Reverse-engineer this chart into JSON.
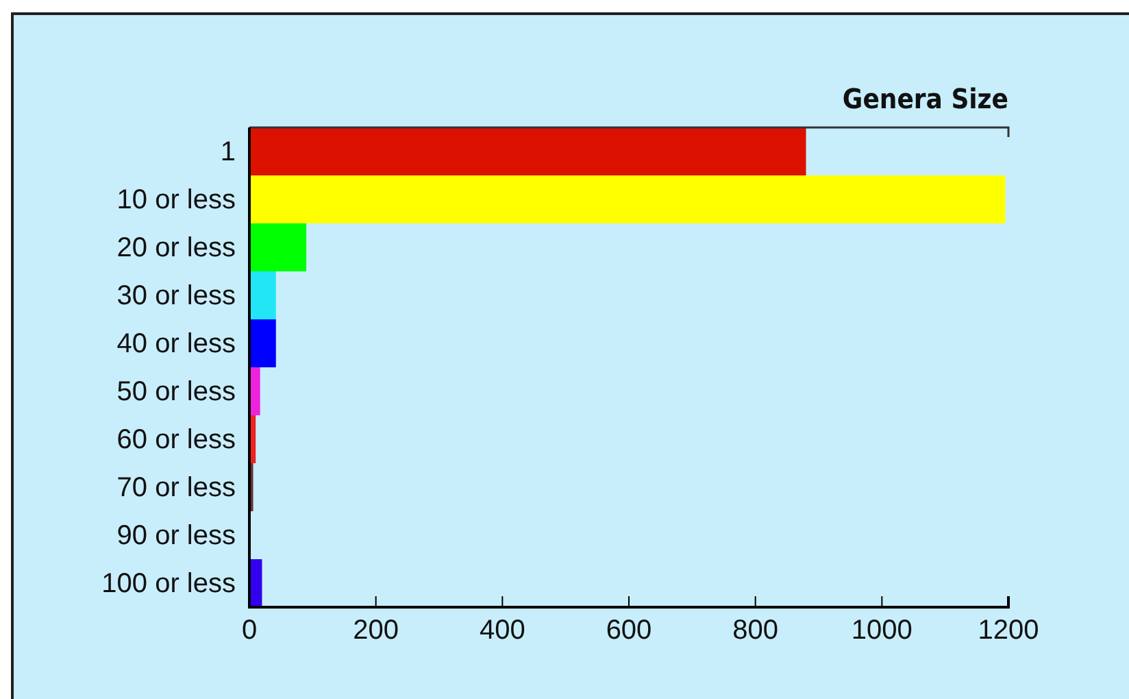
{
  "chart_data": {
    "type": "bar",
    "orientation": "horizontal",
    "title": "Genera Size",
    "categories": [
      "1",
      "10 or less",
      "20 or less",
      "30 or less",
      "40 or less",
      "50 or less",
      "60 or less",
      "70 or less",
      "90 or less",
      "100 or less"
    ],
    "values": [
      880,
      1195,
      90,
      42,
      42,
      17,
      10,
      6,
      2,
      20
    ],
    "colors": [
      "#dd1100",
      "#ffff00",
      "#00ff00",
      "#22e6f5",
      "#0000ff",
      "#ee22dd",
      "#ee2222",
      "#663333",
      "#000000",
      "#3300ee"
    ],
    "xlim": [
      0,
      1200
    ],
    "xticks": [
      0,
      200,
      400,
      600,
      800,
      1000,
      1200
    ]
  }
}
